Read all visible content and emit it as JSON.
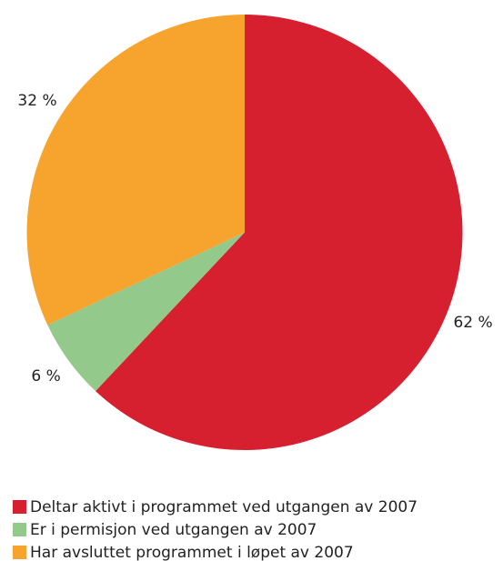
{
  "chart_data": {
    "type": "pie",
    "categories": [
      "Deltar aktivt i programmet ved utgangen av 2007",
      "Er i permisjon ved utgangen av 2007",
      "Har avsluttet programmet i løpet av 2007"
    ],
    "values": [
      62,
      6,
      32
    ],
    "value_labels": [
      "62 %",
      "6 %",
      "32 %"
    ],
    "colors": [
      "#d7202f",
      "#93c98a",
      "#f6a42e"
    ]
  }
}
